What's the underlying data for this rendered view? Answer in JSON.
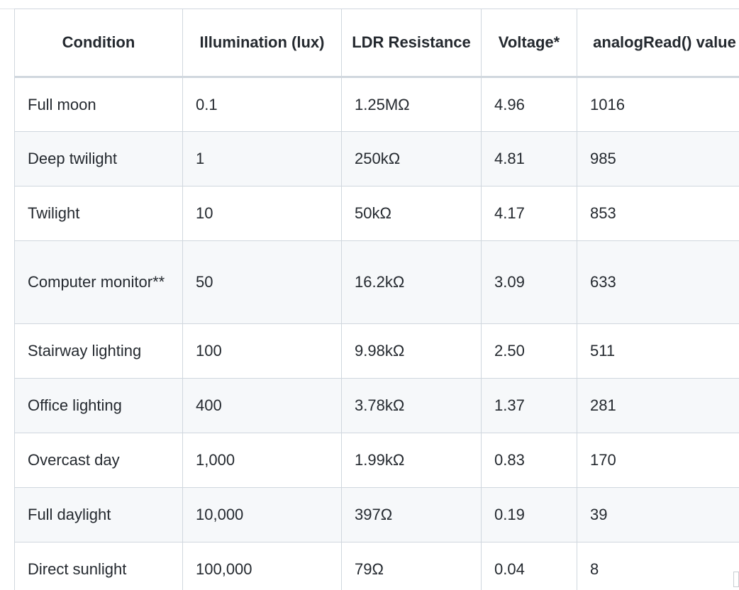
{
  "table": {
    "headers": [
      "Condition",
      "Illumination (lux)",
      "LDR Resistance",
      "Voltage*",
      "analogRead() value"
    ],
    "rows": [
      [
        "Full moon",
        "0.1",
        "1.25MΩ",
        "4.96",
        "1016"
      ],
      [
        "Deep twilight",
        "1",
        "250kΩ",
        "4.81",
        "985"
      ],
      [
        "Twilight",
        "10",
        "50kΩ",
        "4.17",
        "853"
      ],
      [
        "Computer monitor**",
        "50",
        "16.2kΩ",
        "3.09",
        "633"
      ],
      [
        "Stairway lighting",
        "100",
        "9.98kΩ",
        "2.50",
        "511"
      ],
      [
        "Office lighting",
        "400",
        "3.78kΩ",
        "1.37",
        "281"
      ],
      [
        "Overcast day",
        "1,000",
        "1.99kΩ",
        "0.83",
        "170"
      ],
      [
        "Full daylight",
        "10,000",
        "397Ω",
        "0.19",
        "39"
      ],
      [
        "Direct sunlight",
        "100,000",
        "79Ω",
        "0.04",
        "8"
      ]
    ]
  }
}
